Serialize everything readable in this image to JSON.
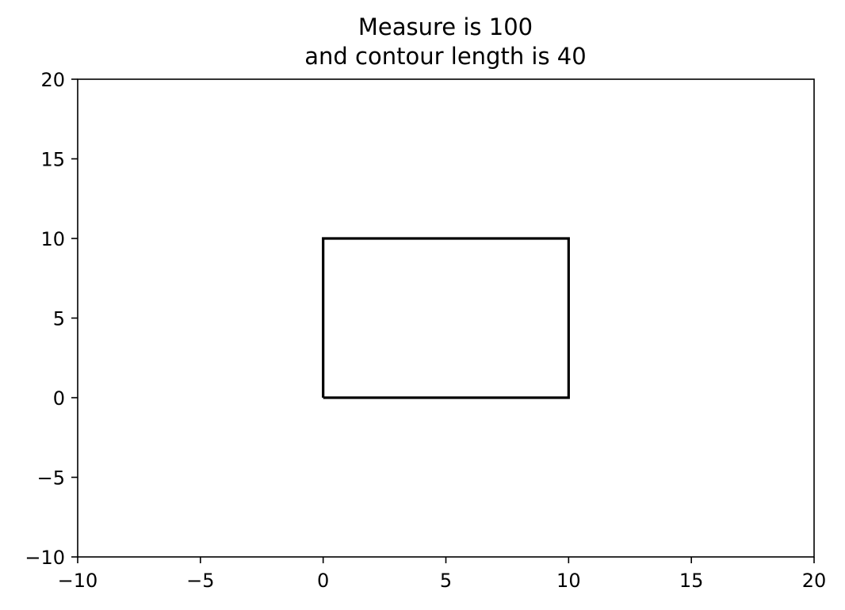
{
  "chart_data": {
    "type": "line",
    "title_lines": [
      "Measure is 100",
      "and contour length is 40"
    ],
    "xlabel": "",
    "ylabel": "",
    "xlim": [
      -10,
      20
    ],
    "ylim": [
      -10,
      20
    ],
    "x_ticks": [
      -10,
      -5,
      0,
      5,
      10,
      15,
      20
    ],
    "y_ticks": [
      -10,
      -5,
      0,
      5,
      10,
      15,
      20
    ],
    "x_tick_labels": [
      "−10",
      "−5",
      "0",
      "5",
      "10",
      "15",
      "20"
    ],
    "y_tick_labels": [
      "−10",
      "−5",
      "0",
      "5",
      "10",
      "15",
      "20"
    ],
    "grid": false,
    "series": [
      {
        "color": "#000000",
        "points": [
          [
            0,
            0
          ],
          [
            10,
            0
          ],
          [
            10,
            10
          ],
          [
            0,
            10
          ],
          [
            0,
            0
          ]
        ]
      }
    ]
  }
}
